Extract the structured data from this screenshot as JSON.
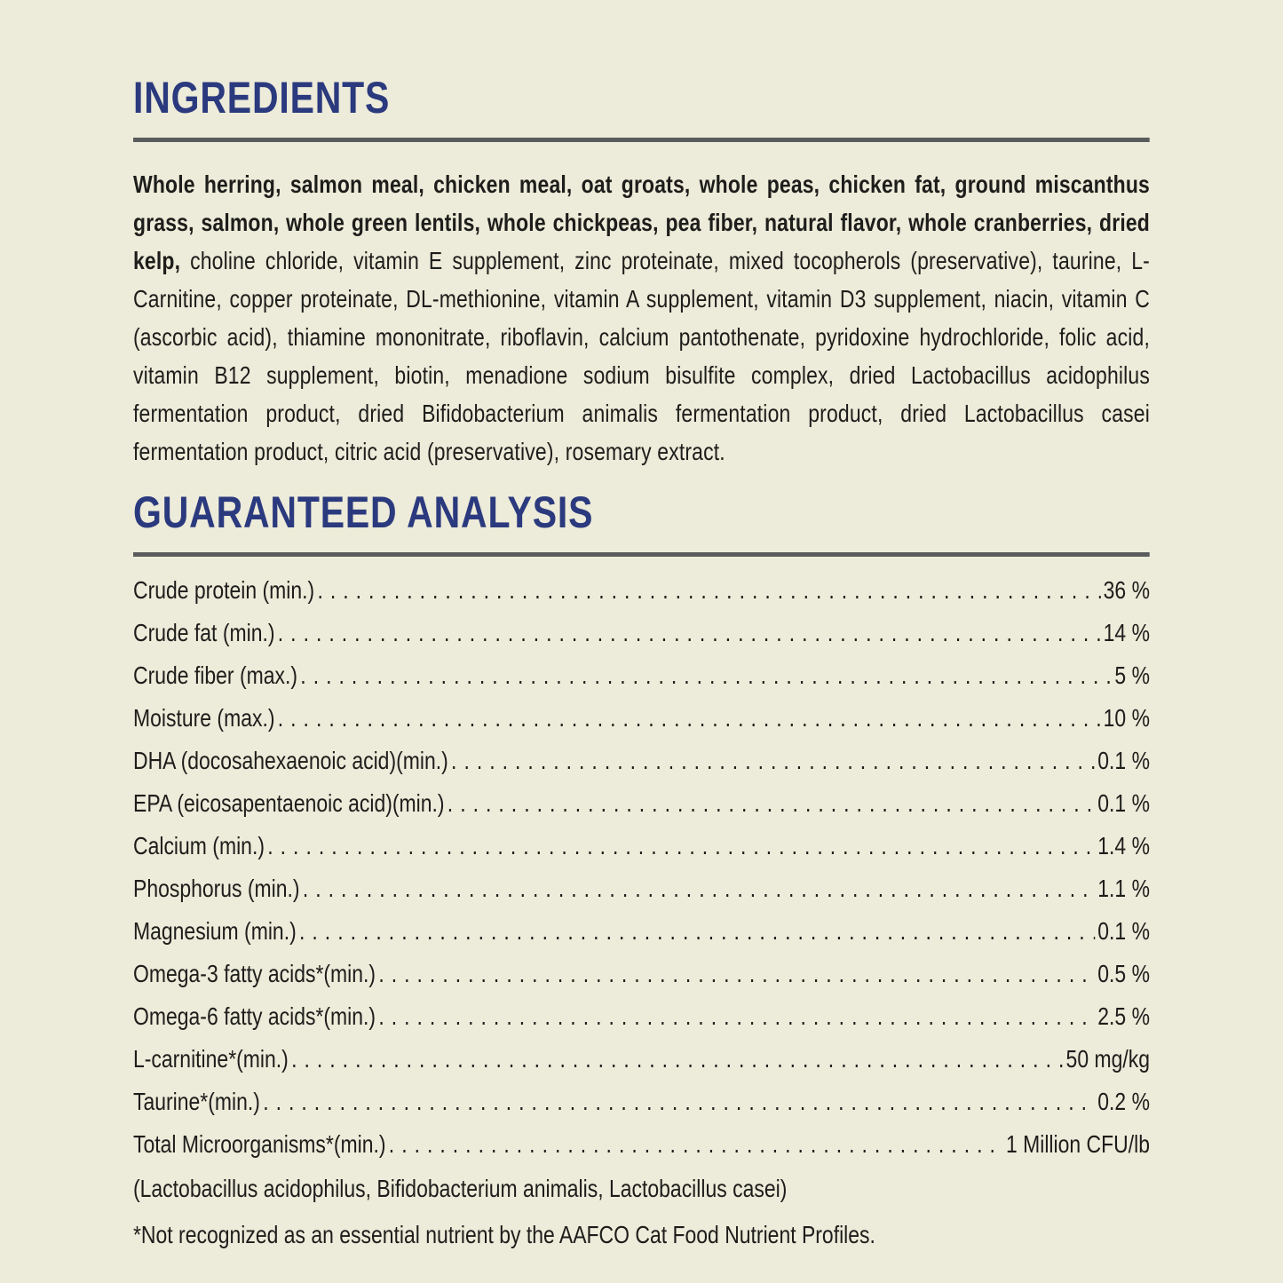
{
  "page": {
    "background_color": "#edebd9",
    "accent_color": "#2b3a7e",
    "rule_color": "#5a5b5d",
    "text_color": "#1d1d1b"
  },
  "ingredients": {
    "title": "INGREDIENTS",
    "bold_text": "Whole herring, salmon meal, chicken meal, oat groats, whole peas, chicken fat, ground miscanthus grass, salmon, whole green lentils, whole chickpeas, pea fiber, natural flavor, whole cranberries, dried kelp,",
    "regular_text": " choline chloride, vitamin E supplement, zinc proteinate, mixed tocopherols (preservative), taurine, L-Carnitine, copper proteinate, DL-methionine, vitamin A supplement, vitamin D3 supplement, niacin, vitamin C (ascorbic acid), thiamine mononitrate, riboflavin, calcium pantothenate, pyridoxine hydrochloride, folic acid, vitamin B12 supplement, biotin, menadione sodium bisulfite complex, dried Lactobacillus acidophilus fermentation product, dried Bifidobacterium animalis fermentation product, dried Lactobacillus casei fermentation product, citric acid (preservative), rosemary extract."
  },
  "analysis": {
    "title": "GUARANTEED ANALYSIS",
    "rows": [
      {
        "label": "Crude protein (min.)",
        "value": "36 %"
      },
      {
        "label": "Crude fat (min.)",
        "value": "14 %"
      },
      {
        "label": "Crude fiber (max.)",
        "value": "5 %"
      },
      {
        "label": "Moisture (max.)",
        "value": "10 %"
      },
      {
        "label": "DHA (docosahexaenoic acid)(min.)",
        "value": "0.1 %"
      },
      {
        "label": "EPA (eicosapentaenoic acid)(min.)",
        "value": "0.1 %"
      },
      {
        "label": "Calcium (min.)",
        "value": "1.4 %"
      },
      {
        "label": "Phosphorus (min.)",
        "value": "1.1 %"
      },
      {
        "label": "Magnesium (min.)",
        "value": "0.1 %"
      },
      {
        "label": "Omega-3 fatty acids*(min.)",
        "value": "0.5 %"
      },
      {
        "label": "Omega-6 fatty acids*(min.)",
        "value": "2.5 %"
      },
      {
        "label": "L-carnitine*(min.)",
        "value": "50 mg/kg"
      },
      {
        "label": "Taurine*(min.)",
        "value": "0.2 %"
      },
      {
        "label": "Total Microorganisms*(min.)",
        "value": "1 Million CFU/lb"
      }
    ],
    "subnote": "(Lactobacillus acidophilus, Bifidobacterium animalis, Lactobacillus casei)",
    "footnote": "*Not recognized as an essential nutrient by the AAFCO Cat Food Nutrient Profiles."
  }
}
